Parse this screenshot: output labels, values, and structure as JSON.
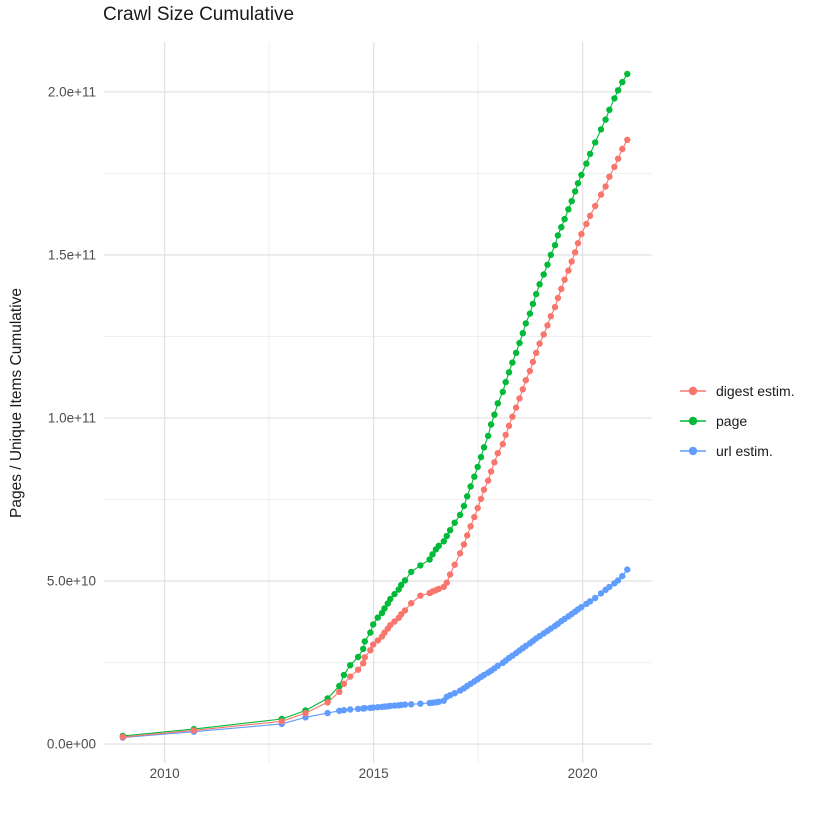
{
  "title": "Crawl Size Cumulative",
  "chart_data": {
    "type": "scatter",
    "title": "Crawl Size Cumulative",
    "xlabel": "",
    "ylabel": "Pages / Unique Items Cumulative",
    "legend_position": "right",
    "grid": true,
    "background": "#FFFFFF",
    "xlim": [
      2008.55,
      2021.66
    ],
    "ylim": [
      -5800000000.0,
      215300000000.0
    ],
    "x_ticks": {
      "major": [
        2010,
        2015,
        2020
      ],
      "major_labels": [
        "2010",
        "2015",
        "2020"
      ],
      "minor": [
        2012.5,
        2017.5
      ]
    },
    "y_ticks": {
      "major": [
        0,
        50000000000.0,
        100000000000.0,
        150000000000.0,
        200000000000.0
      ],
      "major_labels": [
        "0.0e+00",
        "5.0e+10",
        "1.0e+11",
        "1.5e+11",
        "2.0e+11"
      ],
      "minor": [
        25000000000.0,
        75000000000.0,
        125000000000.0,
        175000000000.0
      ]
    },
    "x_unit": "year (crawl date, decimal)",
    "x": [
      2009.0,
      2010.7,
      2012.8,
      2013.37,
      2013.9,
      2014.18,
      2014.29,
      2014.44,
      2014.63,
      2014.75,
      2014.79,
      2014.92,
      2014.99,
      2015.1,
      2015.2,
      2015.26,
      2015.34,
      2015.4,
      2015.5,
      2015.6,
      2015.66,
      2015.75,
      2015.9,
      2016.12,
      2016.34,
      2016.41,
      2016.49,
      2016.56,
      2016.68,
      2016.75,
      2016.83,
      2016.94,
      2017.07,
      2017.16,
      2017.24,
      2017.32,
      2017.41,
      2017.49,
      2017.57,
      2017.64,
      2017.74,
      2017.81,
      2017.89,
      2017.97,
      2018.09,
      2018.16,
      2018.24,
      2018.32,
      2018.41,
      2018.49,
      2018.57,
      2018.64,
      2018.74,
      2018.81,
      2018.89,
      2018.97,
      2019.07,
      2019.16,
      2019.24,
      2019.34,
      2019.41,
      2019.49,
      2019.57,
      2019.66,
      2019.74,
      2019.82,
      2019.89,
      2019.97,
      2020.09,
      2020.18,
      2020.3,
      2020.44,
      2020.55,
      2020.64,
      2020.76,
      2020.85,
      2020.95,
      2021.07
    ],
    "series": [
      {
        "name": "digest estim.",
        "color": "#F8766D",
        "values": [
          2200000000.0,
          4200000000.0,
          7000000000.0,
          9500000000.0,
          12800000000.0,
          16000000000.0,
          18500000000.0,
          20700000000.0,
          22800000000.0,
          24800000000.0,
          26600000000.0,
          28800000000.0,
          30500000000.0,
          31800000000.0,
          33000000000.0,
          34200000000.0,
          35400000000.0,
          36500000000.0,
          37600000000.0,
          38700000000.0,
          39800000000.0,
          41000000000.0,
          43200000000.0,
          45500000000.0,
          46300000000.0,
          46800000000.0,
          47200000000.0,
          47600000000.0,
          48200000000.0,
          49500000000.0,
          52000000000.0,
          55000000000.0,
          58500000000.0,
          61200000000.0,
          64000000000.0,
          66800000000.0,
          69600000000.0,
          72400000000.0,
          75200000000.0,
          78000000000.0,
          80800000000.0,
          83600000000.0,
          86400000000.0,
          89200000000.0,
          92000000000.0,
          94800000000.0,
          97600000000.0,
          100400000000.0,
          103200000000.0,
          106000000000.0,
          108800000000.0,
          111600000000.0,
          114400000000.0,
          117200000000.0,
          120000000000.0,
          122800000000.0,
          125600000000.0,
          128400000000.0,
          131200000000.0,
          134000000000.0,
          136800000000.0,
          139600000000.0,
          142400000000.0,
          145200000000.0,
          148000000000.0,
          150800000000.0,
          153600000000.0,
          156400000000.0,
          159500000000.0,
          162000000000.0,
          165000000000.0,
          168500000000.0,
          171000000000.0,
          174000000000.0,
          177000000000.0,
          179500000000.0,
          182500000000.0,
          185300000000.0
        ]
      },
      {
        "name": "page",
        "color": "#00BA38",
        "values": [
          2500000000.0,
          4600000000.0,
          7700000000.0,
          10300000000.0,
          14000000000.0,
          17800000000.0,
          21200000000.0,
          24200000000.0,
          26700000000.0,
          29200000000.0,
          31500000000.0,
          34200000000.0,
          36700000000.0,
          38800000000.0,
          40200000000.0,
          41600000000.0,
          43100000000.0,
          44500000000.0,
          46000000000.0,
          47400000000.0,
          48800000000.0,
          50200000000.0,
          52800000000.0,
          54800000000.0,
          56600000000.0,
          58200000000.0,
          59700000000.0,
          60800000000.0,
          62200000000.0,
          63800000000.0,
          65600000000.0,
          67900000000.0,
          70300000000.0,
          73000000000.0,
          76000000000.0,
          79000000000.0,
          82000000000.0,
          85000000000.0,
          88000000000.0,
          91000000000.0,
          94500000000.0,
          98000000000.0,
          101000000000.0,
          104500000000.0,
          108000000000.0,
          111000000000.0,
          114000000000.0,
          117000000000.0,
          120000000000.0,
          123000000000.0,
          126000000000.0,
          129000000000.0,
          132000000000.0,
          135000000000.0,
          138000000000.0,
          141000000000.0,
          144000000000.0,
          147000000000.0,
          150000000000.0,
          153000000000.0,
          156000000000.0,
          158500000000.0,
          161000000000.0,
          164000000000.0,
          166500000000.0,
          169500000000.0,
          172000000000.0,
          174500000000.0,
          178000000000.0,
          181000000000.0,
          184500000000.0,
          188500000000.0,
          191500000000.0,
          194500000000.0,
          198000000000.0,
          200500000000.0,
          203000000000.0,
          205500000000.0
        ]
      },
      {
        "name": "url estim.",
        "color": "#619CFF",
        "values": [
          2000000000.0,
          3800000000.0,
          6200000000.0,
          8200000000.0,
          9500000000.0,
          10200000000.0,
          10400000000.0,
          10600000000.0,
          10800000000.0,
          10900000000.0,
          11000000000.0,
          11100000000.0,
          11200000000.0,
          11300000000.0,
          11400000000.0,
          11500000000.0,
          11600000000.0,
          11700000000.0,
          11800000000.0,
          11900000000.0,
          12000000000.0,
          12100000000.0,
          12200000000.0,
          12400000000.0,
          12600000000.0,
          12700000000.0,
          12800000000.0,
          13000000000.0,
          13300000000.0,
          14500000000.0,
          15000000000.0,
          15600000000.0,
          16400000000.0,
          17100000000.0,
          17800000000.0,
          18500000000.0,
          19200000000.0,
          19900000000.0,
          20600000000.0,
          21200000000.0,
          21900000000.0,
          22500000000.0,
          23200000000.0,
          24000000000.0,
          24900000000.0,
          25600000000.0,
          26400000000.0,
          27100000000.0,
          27900000000.0,
          28700000000.0,
          29400000000.0,
          30100000000.0,
          30900000000.0,
          31600000000.0,
          32400000000.0,
          33100000000.0,
          33900000000.0,
          34700000000.0,
          35400000000.0,
          36200000000.0,
          36900000000.0,
          37700000000.0,
          38400000000.0,
          39200000000.0,
          39900000000.0,
          40600000000.0,
          41300000000.0,
          42000000000.0,
          43000000000.0,
          43800000000.0,
          44800000000.0,
          46200000000.0,
          47300000000.0,
          48200000000.0,
          49300000000.0,
          50200000000.0,
          51500000000.0,
          53500000000.0
        ]
      }
    ],
    "style": {
      "grid_major_color": "#E3E3E3",
      "grid_minor_color": "#F0F0F0",
      "tick_label_color": "#4D4D4D",
      "text_color": "#1A1A1A",
      "point_radius_px": 3.2
    }
  }
}
